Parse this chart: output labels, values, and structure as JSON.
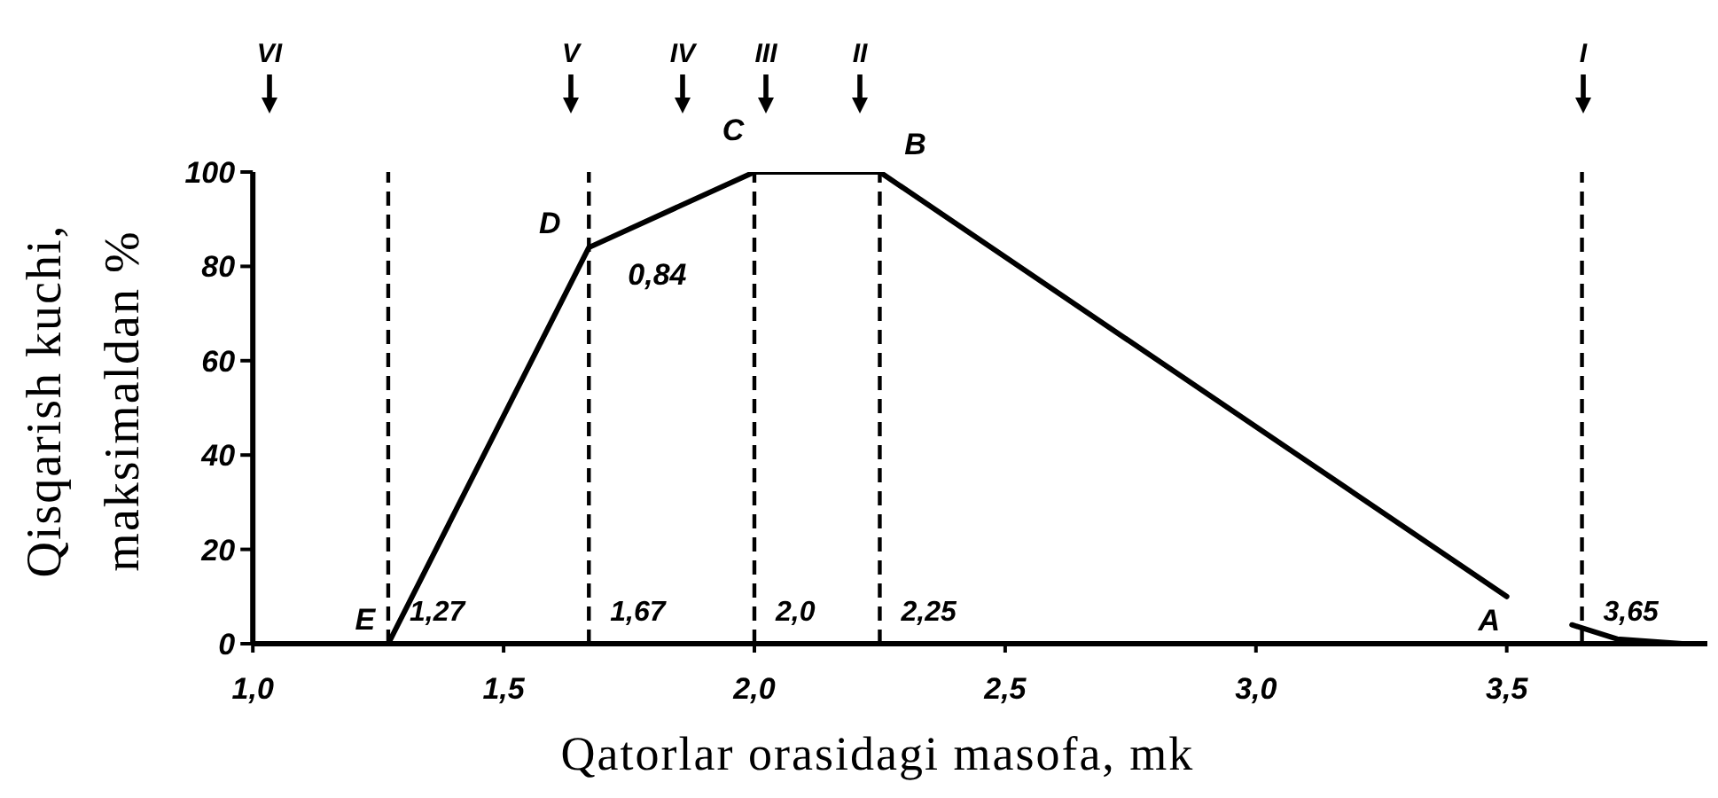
{
  "chart_data": {
    "type": "line",
    "xlabel": "Qatorlar orasidagi masofa, mk",
    "ylabel": "Qisqarish kuchi,\nmaksimaldan %",
    "x": [
      1.27,
      1.67,
      2.0,
      2.25,
      3.5,
      3.56,
      3.63,
      3.72,
      3.85
    ],
    "series": [
      {
        "color": "#000000",
        "values": [
          0,
          84,
          100,
          100,
          10,
          null,
          4,
          1,
          0
        ]
      }
    ],
    "marker": "none",
    "line_style": "solid",
    "xlim": [
      1.0,
      3.9
    ],
    "xticks": [
      {
        "value": 1.0,
        "label": "1,0"
      },
      {
        "value": 1.5,
        "label": "1,5"
      },
      {
        "value": 2.0,
        "label": "2,0"
      },
      {
        "value": 2.5,
        "label": "2,5"
      },
      {
        "value": 3.0,
        "label": "3,0"
      },
      {
        "value": 3.5,
        "label": "3,5"
      }
    ],
    "ylim": [
      0,
      100
    ],
    "yticks": [
      0,
      20,
      40,
      60,
      80,
      100
    ],
    "ref_lines": [
      {
        "axis": "x",
        "value": 1.27,
        "label": "1,27",
        "line_style": "dashed",
        "color": "#000000"
      },
      {
        "axis": "x",
        "value": 1.67,
        "label": "1,67",
        "line_style": "dashed",
        "color": "#000000"
      },
      {
        "axis": "x",
        "value": 2.0,
        "label": "2,0",
        "line_style": "dashed",
        "color": "#000000"
      },
      {
        "axis": "x",
        "value": 2.25,
        "label": "2,25",
        "line_style": "dashed",
        "color": "#000000"
      },
      {
        "axis": "x",
        "value": 3.65,
        "label": "3,65",
        "line_style": "dashed",
        "color": "#000000"
      }
    ],
    "annotations": [
      "VI",
      "V",
      "IV",
      "III",
      "II",
      "I",
      {
        "text": "E",
        "x": 1.27,
        "y": 0
      },
      {
        "text": "D",
        "x": 1.67,
        "y": 84
      },
      {
        "text": "0,84",
        "x": 1.67,
        "y": 84
      },
      {
        "text": "C",
        "x": 2.0,
        "y": 100
      },
      {
        "text": "B",
        "x": 2.25,
        "y": 100
      },
      {
        "text": "A",
        "x": 3.5,
        "y": 10
      }
    ]
  }
}
